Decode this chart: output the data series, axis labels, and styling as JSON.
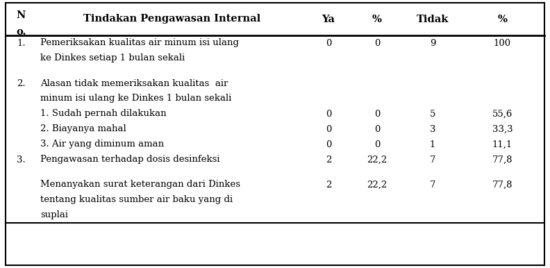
{
  "headers": [
    "N\no.",
    "Tindakan Pengawasan Internal",
    "Ya",
    "%",
    "Tidak",
    "%"
  ],
  "rows": [
    {
      "no": "1.",
      "description": [
        "Pemeriksakan kualitas air minum isi ulang",
        "ke Dinkes setiap 1 bulan sekali"
      ],
      "ya": "0",
      "pct_ya": "0",
      "tidak": "9",
      "pct_tidak": "100",
      "num_lines": 2,
      "has_gap": true
    },
    {
      "no": "2.",
      "description": [
        "Alasan tidak memeriksakan kualitas  air",
        "minum isi ulang ke Dinkes 1 bulan sekali"
      ],
      "ya": "",
      "pct_ya": "",
      "tidak": "",
      "pct_tidak": "",
      "num_lines": 2,
      "has_gap": false
    },
    {
      "no": "",
      "description": [
        "1. Sudah pernah dilakukan"
      ],
      "ya": "0",
      "pct_ya": "0",
      "tidak": "5",
      "pct_tidak": "55,6",
      "num_lines": 1,
      "has_gap": false
    },
    {
      "no": "",
      "description": [
        "2. Biayanya mahal"
      ],
      "ya": "0",
      "pct_ya": "0",
      "tidak": "3",
      "pct_tidak": "33,3",
      "num_lines": 1,
      "has_gap": false
    },
    {
      "no": "",
      "description": [
        "3. Air yang diminum aman"
      ],
      "ya": "0",
      "pct_ya": "0",
      "tidak": "1",
      "pct_tidak": "11,1",
      "num_lines": 1,
      "has_gap": false
    },
    {
      "no": "3.",
      "description": [
        "Pengawasan terhadap dosis desinfeksi"
      ],
      "ya": "2",
      "pct_ya": "22,2",
      "tidak": "7",
      "pct_tidak": "77,8",
      "num_lines": 1,
      "has_gap": true
    },
    {
      "no": "",
      "description": [
        "Menanyakan surat keterangan dari Dinkes",
        "tentang kualitas sumber air baku yang di",
        "suplai"
      ],
      "ya": "2",
      "pct_ya": "22,2",
      "tidak": "7",
      "pct_tidak": "77,8",
      "num_lines": 3,
      "has_gap": false
    }
  ],
  "font_size": 9.5,
  "header_font_size": 10.5,
  "bg_color": "#ffffff",
  "text_color": "#000000",
  "border_color": "#000000"
}
